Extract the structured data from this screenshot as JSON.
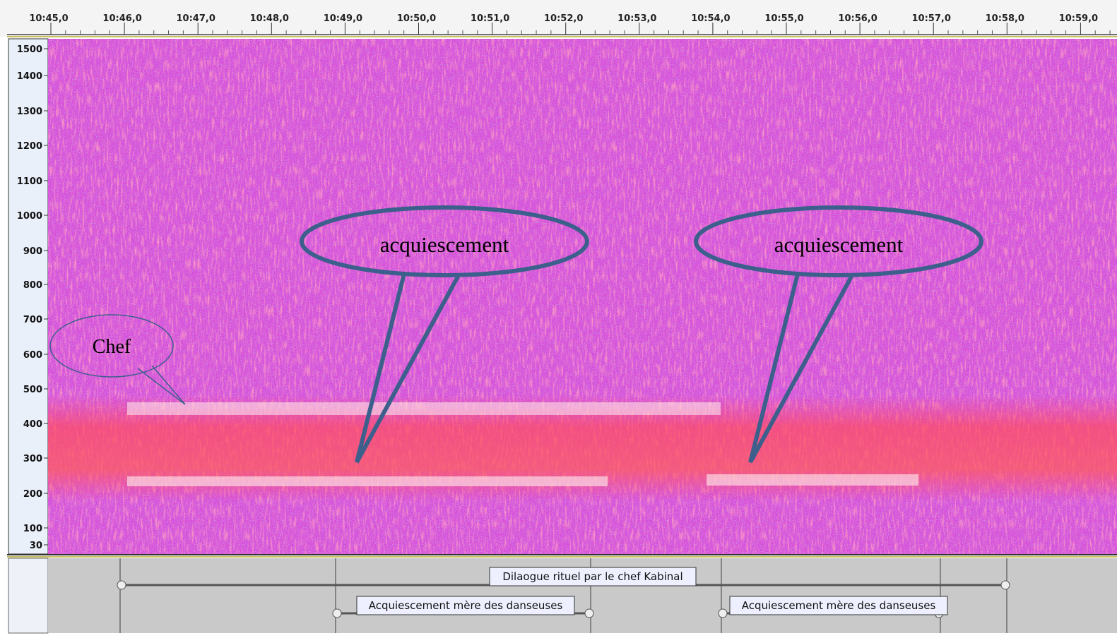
{
  "time_ruler": {
    "ticks": [
      "10:45,0",
      "10:46,0",
      "10:47,0",
      "10:48,0",
      "10:49,0",
      "10:50,0",
      "10:51,0",
      "10:52,0",
      "10:53,0",
      "10:54,0",
      "10:55,0",
      "10:56,0",
      "10:57,0",
      "10:58,0",
      "10:59,0"
    ]
  },
  "frequency_axis": {
    "ticks": [
      "1500",
      "1400",
      "1300",
      "1200",
      "1100",
      "1000",
      "900",
      "800",
      "700",
      "600",
      "500",
      "400",
      "300",
      "200",
      "100",
      "30"
    ]
  },
  "callouts": [
    {
      "label": "Chef"
    },
    {
      "label": "acquiescement"
    },
    {
      "label": "acquiescement"
    }
  ],
  "label_track": {
    "labels": [
      "Dilaogue rituel par le chef Kabinal",
      "Acquiescement mère des danseuses",
      "Acquiescement mère des danseuses"
    ]
  }
}
